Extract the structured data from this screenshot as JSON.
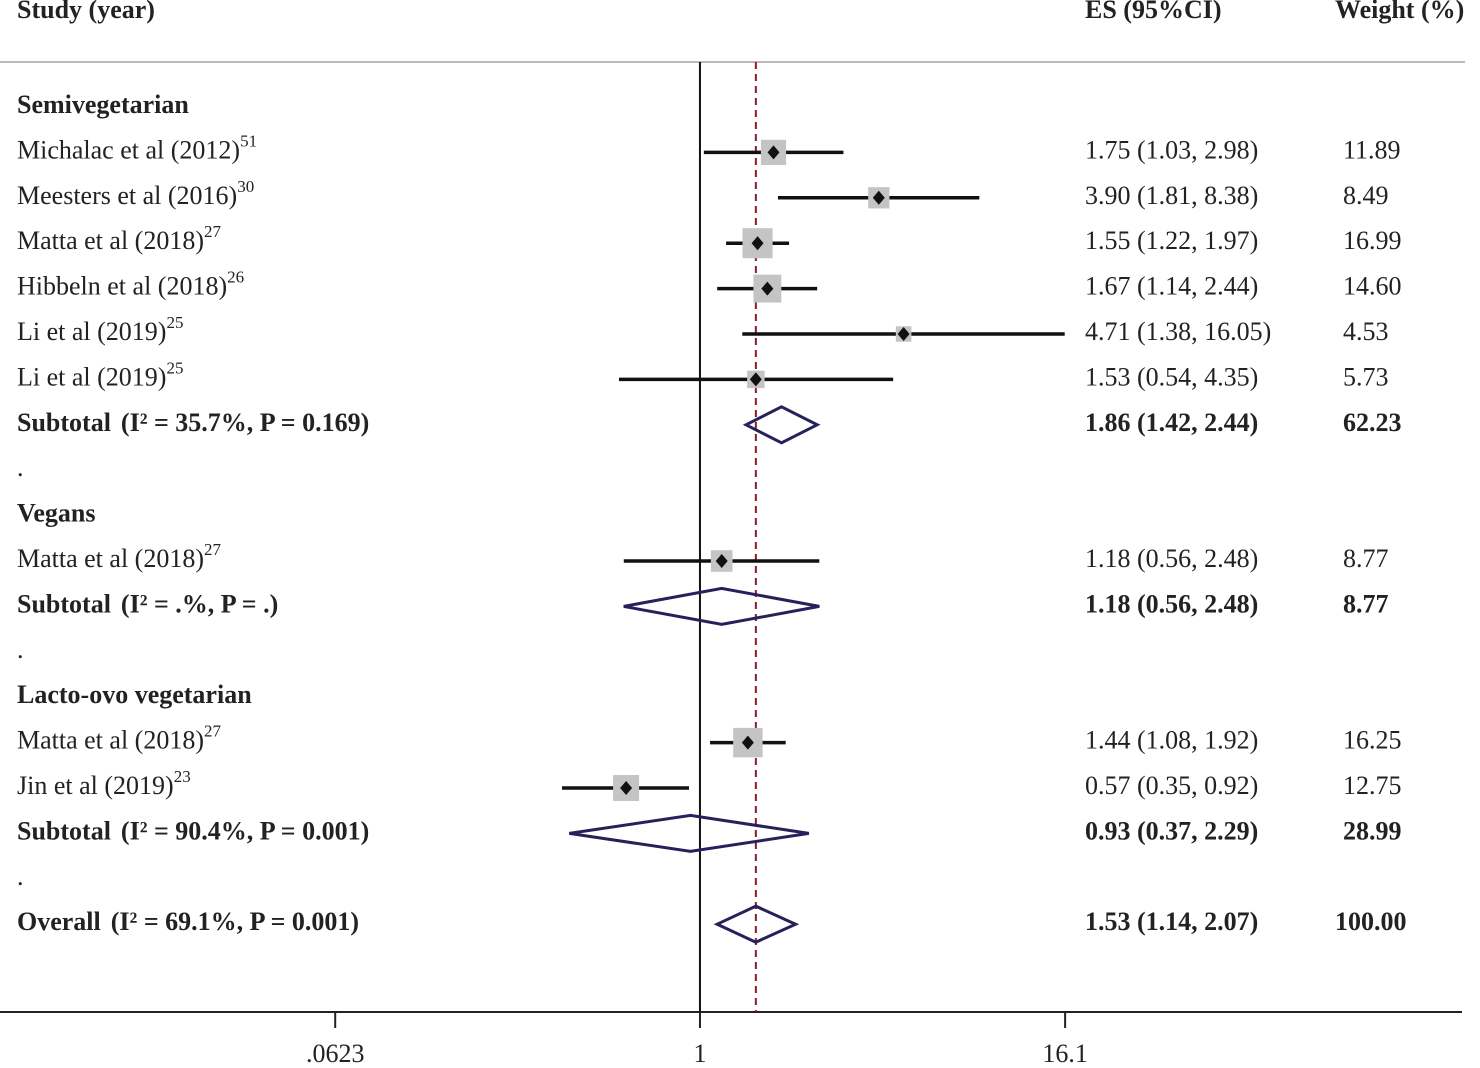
{
  "chart_data": {
    "type": "forest",
    "headers": {
      "study": "Study (year)",
      "es": "ES (95%CI)",
      "weight": "Weight (%)"
    },
    "spacer": ".",
    "xscale": "log",
    "xlim": [
      0.00486,
      330
    ],
    "xticks": [
      {
        "value": 0.0623,
        "label": ".0623"
      },
      1,
      16.1
    ],
    "box_color": "#c4c4c4",
    "line_color": "#111111",
    "diamond_color": "#25215a",
    "overall_line_color": "#8b1a2b",
    "groups": [
      {
        "title": "Semivegetarian",
        "studies": [
          {
            "name": "Michalac et al (2012)",
            "ref": "51",
            "es": 1.75,
            "lo": 1.03,
            "hi": 2.98,
            "ci_label": "1.75 (1.03, 2.98)",
            "weight": 11.89
          },
          {
            "name": "Meesters et al (2016)",
            "ref": "30",
            "es": 3.9,
            "lo": 1.81,
            "hi": 8.38,
            "ci_label": "3.90 (1.81, 8.38)",
            "weight": 8.49
          },
          {
            "name": "Matta et al (2018)",
            "ref": "27",
            "es": 1.55,
            "lo": 1.22,
            "hi": 1.97,
            "ci_label": "1.55 (1.22, 1.97)",
            "weight": 16.99
          },
          {
            "name": "Hibbeln et al (2018)",
            "ref": "26",
            "es": 1.67,
            "lo": 1.14,
            "hi": 2.44,
            "ci_label": "1.67 (1.14, 2.44)",
            "weight": 14.6,
            "weight_label": "14.60"
          },
          {
            "name": "Li et al (2019)",
            "ref": "25",
            "es": 4.71,
            "lo": 1.38,
            "hi": 16.05,
            "ci_label": "4.71 (1.38, 16.05)",
            "weight": 4.53
          },
          {
            "name": "Li et al (2019)",
            "ref": "25",
            "es": 1.53,
            "lo": 0.54,
            "hi": 4.35,
            "ci_label": "1.53 (0.54, 4.35)",
            "weight": 5.73
          }
        ],
        "subtotal": {
          "label": "Subtotal",
          "het": "(I² = 35.7%, P = 0.169)",
          "es": 1.86,
          "lo": 1.42,
          "hi": 2.44,
          "ci_label": "1.86 (1.42, 2.44)",
          "weight": 62.23
        }
      },
      {
        "title": "Vegans",
        "studies": [
          {
            "name": "Matta et al (2018)",
            "ref": "27",
            "es": 1.18,
            "lo": 0.56,
            "hi": 2.48,
            "ci_label": "1.18 (0.56, 2.48)",
            "weight": 8.77
          }
        ],
        "subtotal": {
          "label": "Subtotal",
          "het": "(I² = .%, P = .)",
          "es": 1.18,
          "lo": 0.56,
          "hi": 2.48,
          "ci_label": "1.18 (0.56, 2.48)",
          "weight": 8.77
        }
      },
      {
        "title": "Lacto-ovo vegetarian",
        "studies": [
          {
            "name": "Matta et al (2018)",
            "ref": "27",
            "es": 1.44,
            "lo": 1.08,
            "hi": 1.92,
            "ci_label": "1.44 (1.08, 1.92)",
            "weight": 16.25
          },
          {
            "name": "Jin et al (2019)",
            "ref": "23",
            "es": 0.57,
            "lo": 0.35,
            "hi": 0.92,
            "ci_label": "0.57 (0.35, 0.92)",
            "weight": 12.75
          }
        ],
        "subtotal": {
          "label": "Subtotal",
          "het": "(I² = 90.4%, P = 0.001)",
          "es": 0.93,
          "lo": 0.37,
          "hi": 2.29,
          "ci_label": "0.93 (0.37, 2.29)",
          "weight": 28.99
        }
      }
    ],
    "overall": {
      "label": "Overall",
      "het": "(I² = 69.1%, P = 0.001)",
      "es": 1.53,
      "lo": 1.14,
      "hi": 2.07,
      "ci_label": "1.53 (1.14, 2.07)",
      "weight": 100,
      "weight_label": "100.00"
    }
  }
}
